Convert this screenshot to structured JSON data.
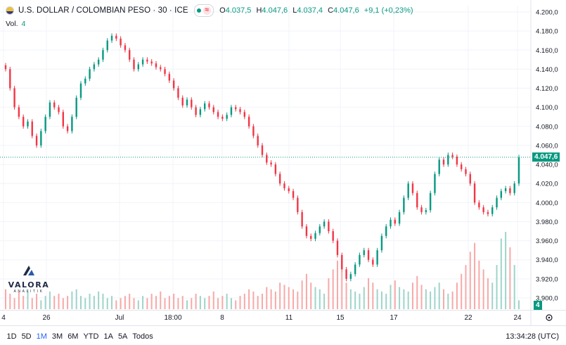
{
  "header": {
    "title": "U.S. DOLLAR / COLOMBIAN PESO · 30 · ICE",
    "open_label": "O",
    "open": "4.037,5",
    "high_label": "H",
    "high": "4.047,6",
    "low_label": "L",
    "low": "4.037,4",
    "close_label": "C",
    "close": "4.047,6",
    "change": "+9,1 (+0,23%)"
  },
  "volume": {
    "label": "Vol.",
    "value": "4"
  },
  "logo": {
    "word": "VALORA",
    "sub": "ANALITIK"
  },
  "ranges": [
    "1D",
    "5D",
    "1M",
    "3M",
    "6M",
    "YTD",
    "1A",
    "5A",
    "Todos"
  ],
  "active_range": "1M",
  "clock": "13:34:28 (UTC)",
  "colors": {
    "up": "#089981",
    "down": "#f23645",
    "up_vol": "#9ed4c9",
    "down_vol": "#f7a9a7",
    "grid": "#f0f3fa",
    "axis_text": "#131722"
  },
  "chart_data": {
    "type": "candlestick",
    "y_ticks": [
      "4.200,0",
      "4.180,0",
      "4.160,0",
      "4.140,0",
      "4.120,0",
      "4.100,0",
      "4.080,0",
      "4.060,0",
      "4.040,0",
      "4.020,0",
      "4.000,0",
      "3.980,0",
      "3.960,0",
      "3.940,0",
      "3.920,0",
      "3.900,0"
    ],
    "ylim": [
      3900,
      4200
    ],
    "x_ticks": [
      "4",
      "26",
      "Jul",
      "18:00",
      "8",
      "11",
      "15",
      "17",
      "22",
      "24"
    ],
    "last_price": 4047.6,
    "last_price_label": "4.047,6",
    "last_volume_label": "4",
    "series_close": [
      4140,
      4120,
      4100,
      4090,
      4080,
      4085,
      4070,
      4060,
      4075,
      4090,
      4105,
      4100,
      4095,
      4080,
      4075,
      4090,
      4110,
      4125,
      4130,
      4140,
      4145,
      4150,
      4160,
      4170,
      4175,
      4172,
      4165,
      4160,
      4150,
      4140,
      4145,
      4150,
      4148,
      4146,
      4142,
      4140,
      4135,
      4128,
      4120,
      4110,
      4102,
      4108,
      4100,
      4092,
      4098,
      4104,
      4100,
      4095,
      4090,
      4088,
      4092,
      4100,
      4098,
      4095,
      4090,
      4080,
      4070,
      4060,
      4050,
      4042,
      4040,
      4030,
      4020,
      4015,
      4012,
      4005,
      3990,
      3975,
      3965,
      3962,
      3968,
      3975,
      3980,
      3970,
      3960,
      3945,
      3930,
      3920,
      3925,
      3935,
      3945,
      3950,
      3940,
      3935,
      3950,
      3965,
      3975,
      3982,
      3978,
      3990,
      4005,
      4020,
      4010,
      3995,
      3990,
      3992,
      4010,
      4030,
      4045,
      4040,
      4050,
      4048,
      4040,
      4035,
      4030,
      4020,
      4000,
      3995,
      3990,
      3988,
      3995,
      4005,
      4012,
      4015,
      4010,
      4020,
      4047.6
    ],
    "series_volume": [
      9,
      7,
      5,
      8,
      6,
      9,
      5,
      7,
      4,
      6,
      8,
      6,
      7,
      5,
      6,
      8,
      9,
      6,
      5,
      7,
      6,
      8,
      7,
      5,
      6,
      4,
      5,
      6,
      7,
      5,
      4,
      6,
      5,
      7,
      6,
      8,
      5,
      6,
      7,
      5,
      6,
      4,
      5,
      7,
      6,
      5,
      6,
      8,
      5,
      6,
      7,
      5,
      4,
      6,
      7,
      9,
      8,
      6,
      7,
      10,
      9,
      8,
      12,
      11,
      10,
      9,
      8,
      13,
      16,
      12,
      10,
      9,
      7,
      14,
      18,
      22,
      17,
      12,
      9,
      8,
      7,
      10,
      14,
      12,
      9,
      8,
      7,
      11,
      13,
      10,
      9,
      8,
      12,
      15,
      11,
      9,
      8,
      10,
      12,
      9,
      7,
      8,
      12,
      16,
      20,
      26,
      30,
      22,
      18,
      14,
      12,
      20,
      32,
      35,
      28,
      20,
      4
    ]
  }
}
